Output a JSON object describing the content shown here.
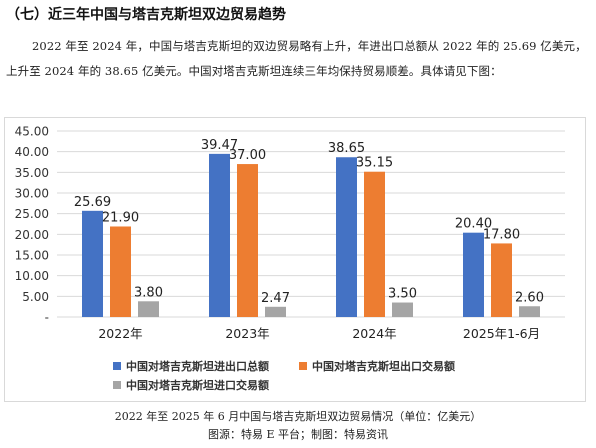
{
  "heading": "（七）近三年中国与塔吉克斯坦双边贸易趋势",
  "paragraph": "2022 年至 2024 年，中国与塔吉克斯坦的双边贸易略有上升，年进出口总额从 2022 年的 25.69 亿美元，上升至 2024 年的 38.65 亿美元。中国对塔吉克斯坦连续三年均保持贸易顺差。具体请见下图：",
  "chart_data": {
    "type": "bar",
    "categories": [
      "2022年",
      "2023年",
      "2024年",
      "2025年1-6月"
    ],
    "series": [
      {
        "name": "中国对塔吉克斯坦进出口总额",
        "color": "#4472C4",
        "values": [
          25.69,
          39.47,
          38.65,
          20.4
        ]
      },
      {
        "name": "中国对塔吉克斯坦出口交易额",
        "color": "#ED7D31",
        "values": [
          21.9,
          37.0,
          35.15,
          17.8
        ]
      },
      {
        "name": "中国对塔吉克斯坦进口交易额",
        "color": "#A5A5A5",
        "values": [
          3.8,
          2.47,
          3.5,
          2.6
        ]
      }
    ],
    "y_ticks": [
      "45.00",
      "40.00",
      "35.00",
      "30.00",
      "25.00",
      "20.00",
      "15.00",
      "10.00",
      "5.00",
      "-"
    ],
    "ylim": [
      0,
      45
    ],
    "grid": true,
    "legend_position": "bottom"
  },
  "caption": {
    "line1": "2022 年至 2025 年 6 月中国与塔吉克斯坦双边贸易情况（单位：亿美元）",
    "line2": "图源：特易 E 平台；制图：特易资讯"
  }
}
